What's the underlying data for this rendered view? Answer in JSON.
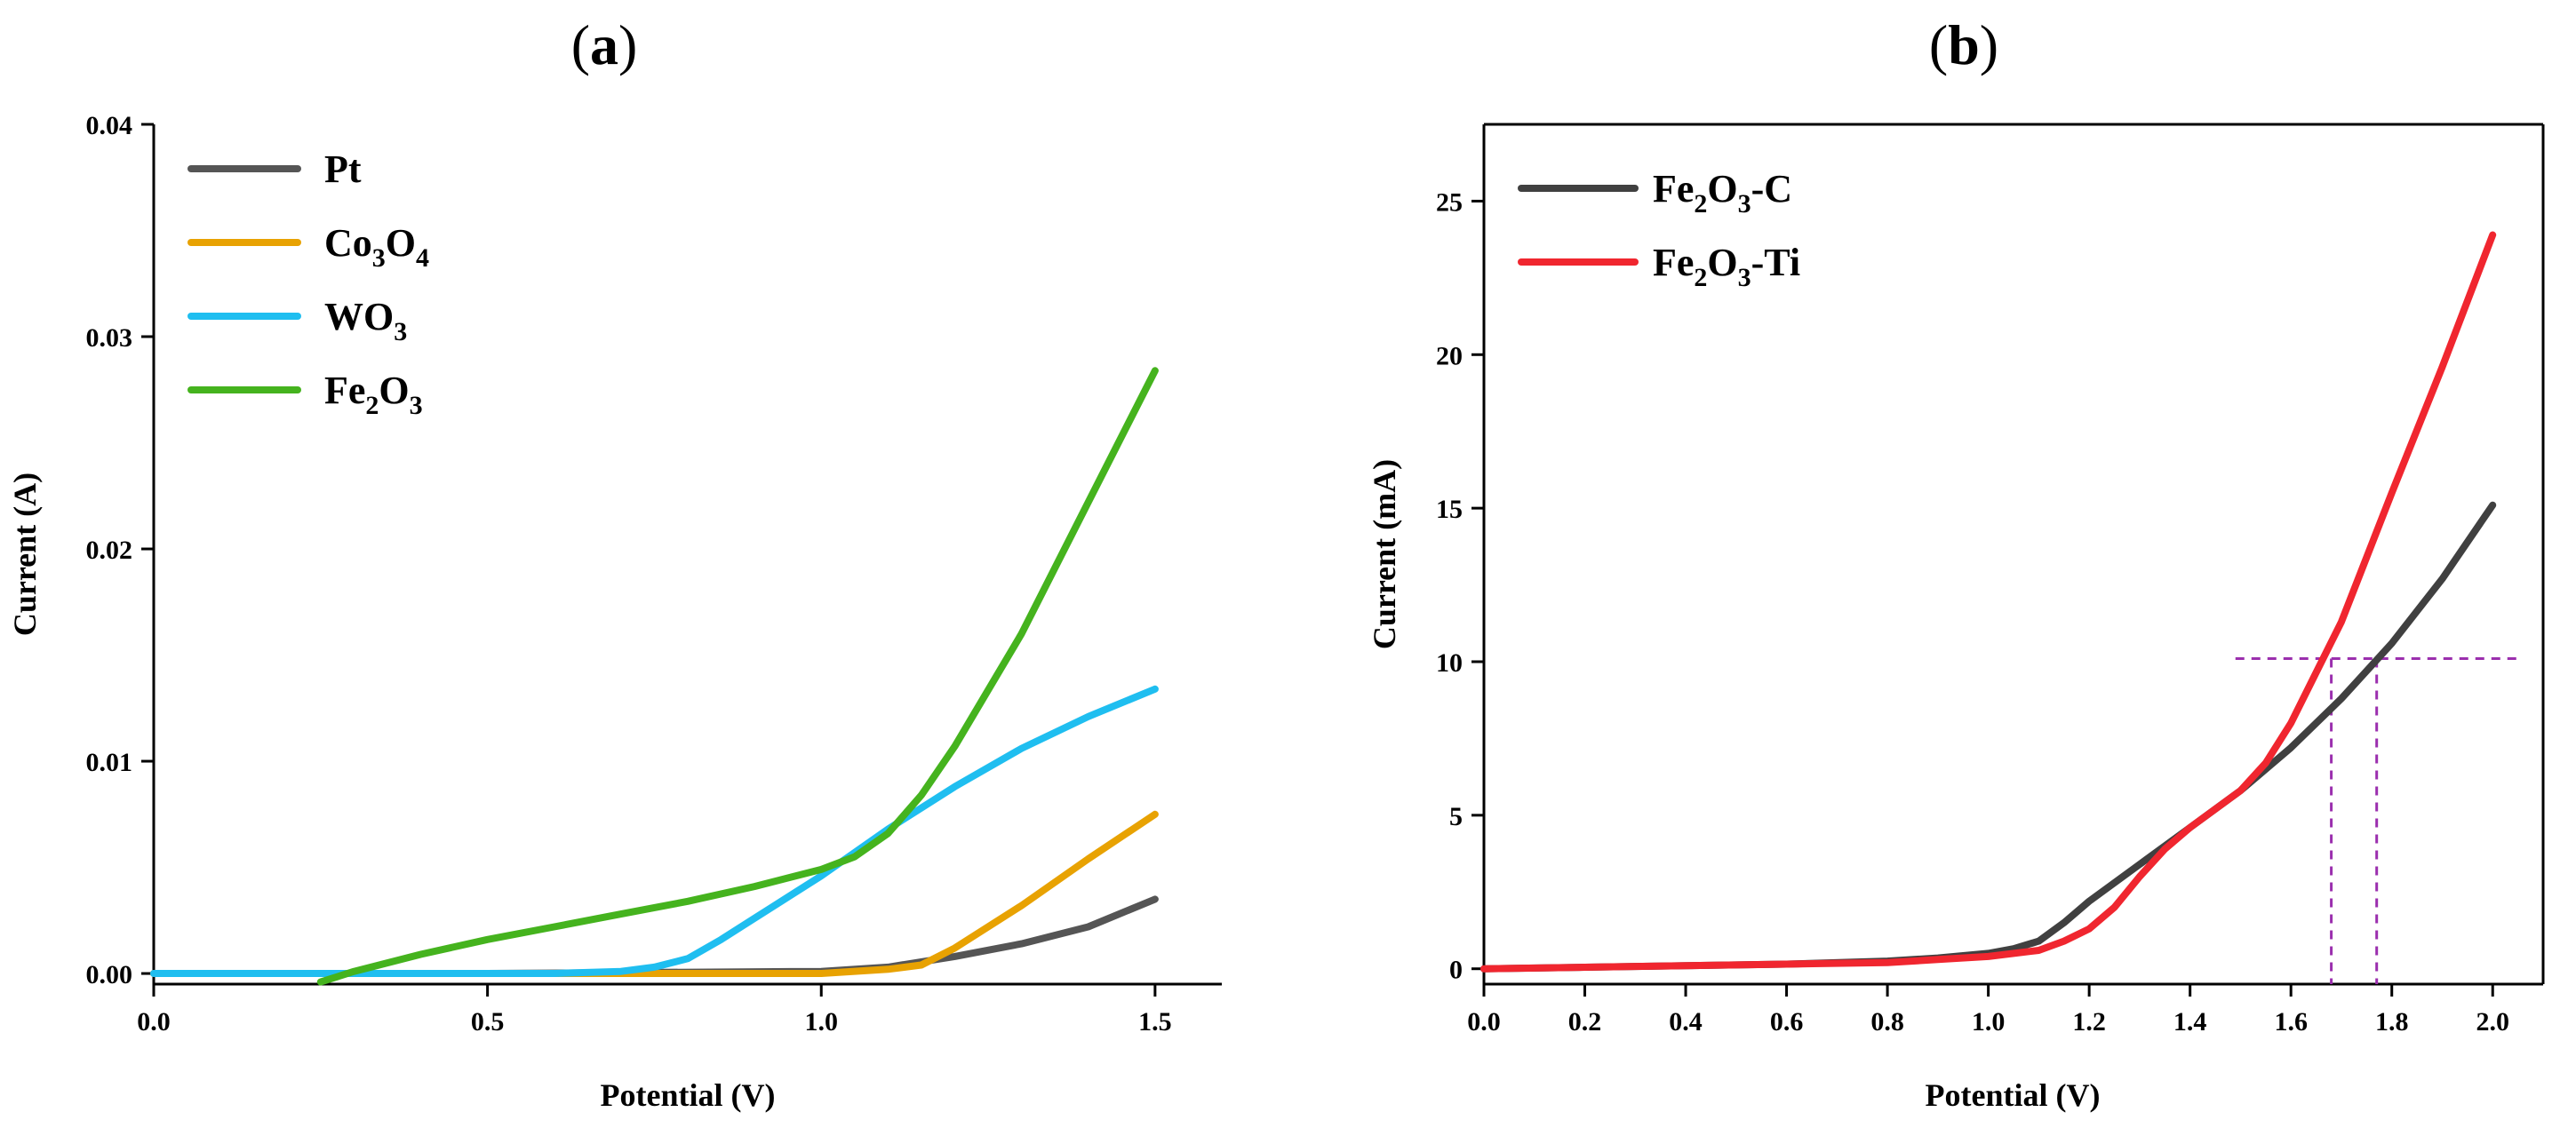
{
  "chart_data": [
    {
      "panel_label": "a",
      "type": "line",
      "title": "",
      "xlabel": "Potential (V)",
      "ylabel": "Current (A)",
      "xlim": [
        0,
        1.6
      ],
      "ylim": [
        -0.0005,
        0.04
      ],
      "x_ticks": [
        0,
        0.5,
        1.0,
        1.5
      ],
      "x_tick_labels": [
        "0.0",
        "0.5",
        "1.0",
        "1.5"
      ],
      "y_ticks": [
        0,
        0.01,
        0.02,
        0.03,
        0.04
      ],
      "y_tick_labels": [
        "0.00",
        "0.01",
        "0.02",
        "0.03",
        "0.04"
      ],
      "grid": false,
      "legend_position": "top-left",
      "series": [
        {
          "name": "Pt",
          "legend_main": "Pt",
          "legend_parts": [],
          "color": "#555555",
          "x": [
            0,
            0.5,
            1.0,
            1.1,
            1.2,
            1.3,
            1.4,
            1.5
          ],
          "y": [
            0,
            0,
            0.0001,
            0.0003,
            0.0008,
            0.0014,
            0.0022,
            0.0035
          ]
        },
        {
          "name": "Co3O4",
          "legend_main": "Co",
          "legend_parts": [
            [
              "3",
              "O"
            ],
            [
              "4",
              ""
            ]
          ],
          "color": "#E8A202",
          "x": [
            0,
            0.8,
            1.0,
            1.1,
            1.15,
            1.2,
            1.3,
            1.4,
            1.5
          ],
          "y": [
            0,
            0,
            0,
            0.0002,
            0.0004,
            0.0012,
            0.0032,
            0.0054,
            0.0075
          ]
        },
        {
          "name": "WO3",
          "legend_main": "WO",
          "legend_parts": [
            [
              "3",
              ""
            ]
          ],
          "color": "#1FBEF0",
          "x": [
            0,
            0.6,
            0.7,
            0.75,
            0.8,
            0.85,
            0.9,
            1.0,
            1.1,
            1.2,
            1.3,
            1.4,
            1.5
          ],
          "y": [
            0,
            0,
            0.0001,
            0.0003,
            0.0007,
            0.0016,
            0.0026,
            0.0046,
            0.0068,
            0.0088,
            0.0106,
            0.0121,
            0.0134
          ]
        },
        {
          "name": "Fe2O3",
          "legend_main": "Fe",
          "legend_parts": [
            [
              "2",
              "O"
            ],
            [
              "3",
              ""
            ]
          ],
          "color": "#45B31E",
          "x": [
            0.25,
            0.3,
            0.4,
            0.5,
            0.6,
            0.7,
            0.8,
            0.9,
            1.0,
            1.05,
            1.1,
            1.15,
            1.2,
            1.3,
            1.4,
            1.5
          ],
          "y": [
            -0.0004,
            0.0001,
            0.0009,
            0.0016,
            0.0022,
            0.0028,
            0.0034,
            0.0041,
            0.0049,
            0.0055,
            0.0066,
            0.0084,
            0.0107,
            0.016,
            0.0222,
            0.0284
          ]
        }
      ]
    },
    {
      "panel_label": "b",
      "type": "line",
      "title": "",
      "xlabel": "Potential (V)",
      "ylabel": "Current  (mA)",
      "xlim": [
        0,
        2.1
      ],
      "ylim": [
        -0.5,
        27.5
      ],
      "x_ticks": [
        0,
        0.2,
        0.4,
        0.6,
        0.8,
        1.0,
        1.2,
        1.4,
        1.6,
        1.8,
        2.0
      ],
      "x_tick_labels": [
        "0.0",
        "0.2",
        "0.4",
        "0.6",
        "0.8",
        "1.0",
        "1.2",
        "1.4",
        "1.6",
        "1.8",
        "2.0"
      ],
      "y_ticks": [
        0,
        5,
        10,
        15,
        20,
        25
      ],
      "y_tick_labels": [
        "0",
        "5",
        "10",
        "15",
        "20",
        "25"
      ],
      "grid": false,
      "legend_position": "top-left",
      "series": [
        {
          "name": "Fe2O3-C",
          "legend_main": "Fe",
          "legend_parts": [
            [
              "2",
              "O"
            ],
            [
              "3",
              "-C"
            ]
          ],
          "color": "#404040",
          "x": [
            0,
            0.2,
            0.4,
            0.6,
            0.8,
            0.9,
            1.0,
            1.05,
            1.1,
            1.15,
            1.2,
            1.3,
            1.4,
            1.5,
            1.6,
            1.7,
            1.8,
            1.9,
            2.0
          ],
          "y": [
            0,
            0.05,
            0.1,
            0.15,
            0.25,
            0.35,
            0.5,
            0.65,
            0.9,
            1.5,
            2.2,
            3.4,
            4.6,
            5.8,
            7.2,
            8.8,
            10.6,
            12.7,
            15.1
          ]
        },
        {
          "name": "Fe2O3-Ti",
          "legend_main": "Fe",
          "legend_parts": [
            [
              "2",
              "O"
            ],
            [
              "3",
              "-Ti"
            ]
          ],
          "color": "#F0262F",
          "x": [
            0,
            0.2,
            0.4,
            0.6,
            0.8,
            0.9,
            1.0,
            1.1,
            1.15,
            1.2,
            1.25,
            1.3,
            1.35,
            1.4,
            1.5,
            1.55,
            1.6,
            1.7,
            1.8,
            1.9,
            2.0
          ],
          "y": [
            0,
            0.05,
            0.1,
            0.15,
            0.2,
            0.3,
            0.4,
            0.6,
            0.9,
            1.3,
            2.0,
            3.0,
            3.9,
            4.6,
            5.8,
            6.7,
            8.0,
            11.3,
            15.5,
            19.6,
            23.9
          ]
        }
      ],
      "reference_lines": {
        "color": "#9B2FAE",
        "current_level": 10.1,
        "potentials": [
          1.68,
          1.77
        ]
      }
    }
  ]
}
